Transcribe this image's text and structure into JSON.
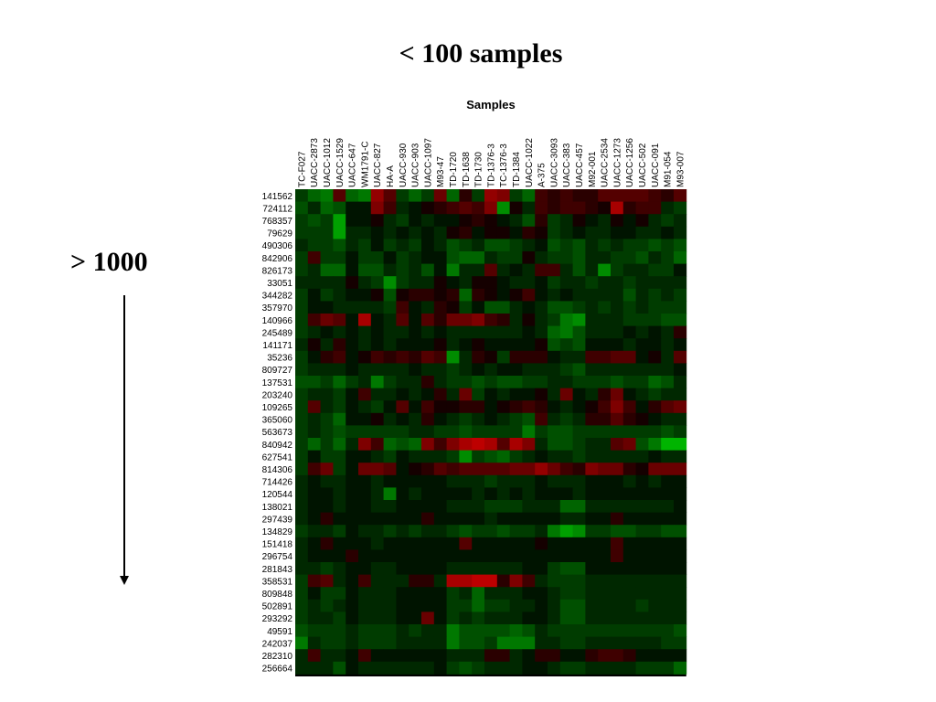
{
  "slide": {
    "title": "< 100  samples",
    "side_label": "> 1000",
    "arrow_icon": "down-arrow-icon"
  },
  "colors": {
    "low": "#00c800",
    "mid": "#000000",
    "high": "#d20000"
  },
  "chart_data": {
    "type": "heatmap",
    "title": "Samples",
    "color_scale": [
      "green",
      "black",
      "red"
    ],
    "columns": [
      "TC-F027",
      "UACC-2873",
      "UACC-1012",
      "UACC-1529",
      "UACC-647",
      "WM1791-C",
      "UACC-827",
      "HA-A",
      "UACC-930",
      "UACC-903",
      "UACC-1097",
      "M93-47",
      "TD-1720",
      "TD-1638",
      "TD-1730",
      "TD-1376-3",
      "TC-1376-3",
      "TD-1384",
      "UACC-1022",
      "A-375",
      "UACC-3093",
      "UACC-383",
      "UACC-457",
      "M92-001",
      "UACC-2534",
      "UACC-1273",
      "UACC-1256",
      "UACC-502",
      "UACC-091",
      "M91-054",
      "M93-007"
    ],
    "rows": [
      "141562",
      "724112",
      "768357",
      "79629",
      "490306",
      "842906",
      "826173",
      "33051",
      "344282",
      "357970",
      "140966",
      "245489",
      "141171",
      "35236",
      "809727",
      "137531",
      "203240",
      "109265",
      "365060",
      "563673",
      "840942",
      "627541",
      "814306",
      "714426",
      "120544",
      "138021",
      "297439",
      "134829",
      "151418",
      "296754",
      "281843",
      "358531",
      "809848",
      "502891",
      "293292",
      "49591",
      "242037",
      "282310",
      "256664"
    ],
    "values": [
      [
        -0.3,
        -0.5,
        -0.6,
        0.4,
        -0.5,
        -0.6,
        0.7,
        0.4,
        -0.3,
        -0.5,
        -0.3,
        0.5,
        -0.5,
        0.2,
        -0.3,
        0.7,
        0.6,
        -0.3,
        -0.5,
        0.3,
        0.2,
        0.3,
        0.2,
        0.2,
        0.4,
        0.4,
        0.4,
        0.4,
        0.3,
        0.2,
        0.4
      ],
      [
        -0.4,
        -0.2,
        -0.5,
        -0.4,
        -0.1,
        -0.1,
        0.6,
        0.3,
        -0.2,
        -0.1,
        0.1,
        0.2,
        0.3,
        0.4,
        0.3,
        0.6,
        -0.7,
        0.1,
        -0.2,
        0.3,
        0.2,
        0.3,
        0.3,
        0.2,
        0.1,
        0.8,
        0.2,
        0.3,
        0.3,
        -0.2,
        -0.3
      ],
      [
        -0.3,
        -0.4,
        -0.3,
        -0.8,
        -0.1,
        -0.1,
        0.1,
        -0.2,
        -0.3,
        -0.1,
        -0.2,
        -0.1,
        -0.1,
        0.1,
        0.2,
        0.1,
        -0.1,
        -0.2,
        -0.4,
        0.2,
        -0.3,
        -0.2,
        0.1,
        -0.1,
        -0.2,
        0.1,
        -0.1,
        0.1,
        -0.2,
        -0.3,
        -0.2
      ],
      [
        -0.3,
        -0.3,
        -0.3,
        -0.8,
        -0.2,
        -0.2,
        -0.1,
        -0.2,
        -0.1,
        -0.2,
        -0.1,
        -0.2,
        0.1,
        0.2,
        -0.1,
        0.1,
        0.1,
        -0.1,
        0.2,
        0.1,
        -0.3,
        -0.2,
        -0.1,
        -0.2,
        -0.2,
        -0.1,
        -0.1,
        -0.2,
        -0.2,
        -0.1,
        -0.2
      ],
      [
        -0.2,
        -0.3,
        -0.3,
        -0.4,
        -0.2,
        -0.3,
        -0.1,
        -0.3,
        -0.2,
        -0.3,
        -0.1,
        -0.2,
        -0.4,
        -0.3,
        -0.2,
        -0.4,
        -0.4,
        -0.3,
        -0.2,
        -0.1,
        -0.4,
        -0.3,
        -0.4,
        -0.2,
        -0.3,
        -0.2,
        -0.3,
        -0.3,
        -0.4,
        -0.3,
        -0.4
      ],
      [
        -0.3,
        0.3,
        -0.3,
        -0.3,
        -0.1,
        -0.3,
        -0.3,
        -0.1,
        -0.3,
        -0.2,
        -0.1,
        -0.1,
        -0.4,
        -0.5,
        -0.5,
        -0.2,
        -0.3,
        -0.3,
        0.1,
        -0.2,
        -0.3,
        -0.3,
        -0.4,
        -0.2,
        -0.2,
        -0.3,
        -0.3,
        -0.4,
        -0.2,
        -0.3,
        -0.5
      ],
      [
        -0.3,
        -0.2,
        -0.5,
        -0.5,
        -0.1,
        -0.4,
        -0.4,
        -0.2,
        -0.3,
        -0.2,
        -0.4,
        -0.1,
        -0.6,
        -0.2,
        -0.2,
        0.4,
        -0.2,
        -0.1,
        -0.2,
        0.3,
        0.3,
        -0.2,
        -0.4,
        -0.2,
        -0.7,
        -0.3,
        -0.2,
        -0.2,
        -0.3,
        -0.3,
        -0.1
      ],
      [
        -0.2,
        -0.2,
        -0.2,
        -0.2,
        0.1,
        -0.2,
        -0.3,
        -0.7,
        -0.3,
        -0.2,
        -0.2,
        0.1,
        -0.1,
        -0.2,
        0.1,
        0.1,
        -0.1,
        -0.2,
        -0.2,
        -0.1,
        -0.3,
        -0.2,
        -0.2,
        -0.3,
        -0.2,
        -0.2,
        -0.3,
        -0.2,
        -0.2,
        -0.2,
        -0.2
      ],
      [
        -0.3,
        -0.1,
        -0.3,
        -0.2,
        -0.1,
        -0.1,
        0.1,
        -0.4,
        0.1,
        0.2,
        0.2,
        0.1,
        0.2,
        -0.5,
        0.2,
        0.1,
        -0.1,
        0.1,
        0.3,
        -0.1,
        -0.2,
        -0.1,
        -0.2,
        -0.2,
        -0.2,
        -0.2,
        -0.4,
        -0.2,
        -0.3,
        -0.2,
        -0.3
      ],
      [
        -0.3,
        -0.1,
        -0.1,
        -0.2,
        -0.2,
        -0.2,
        -0.2,
        -0.3,
        0.3,
        -0.1,
        -0.2,
        0.2,
        0.1,
        -0.3,
        -0.1,
        -0.4,
        -0.4,
        -0.2,
        -0.1,
        -0.2,
        -0.4,
        -0.4,
        -0.3,
        -0.2,
        -0.3,
        -0.2,
        -0.3,
        -0.2,
        -0.3,
        -0.3,
        -0.3
      ],
      [
        -0.3,
        0.3,
        0.5,
        0.4,
        -0.1,
        0.8,
        -0.1,
        -0.2,
        0.4,
        -0.1,
        0.4,
        0.2,
        0.5,
        0.5,
        0.6,
        0.3,
        0.2,
        -0.2,
        0.1,
        -0.2,
        -0.3,
        -0.6,
        -0.7,
        -0.2,
        -0.2,
        -0.2,
        -0.3,
        -0.3,
        -0.3,
        -0.4,
        -0.4
      ],
      [
        -0.3,
        -0.2,
        -0.1,
        -0.2,
        -0.1,
        -0.2,
        -0.1,
        -0.2,
        -0.2,
        -0.1,
        -0.2,
        -0.1,
        -0.2,
        -0.2,
        -0.2,
        -0.2,
        -0.2,
        -0.2,
        -0.1,
        -0.2,
        -0.5,
        -0.6,
        -0.4,
        -0.2,
        -0.2,
        -0.2,
        -0.1,
        -0.2,
        -0.1,
        -0.2,
        0.2
      ],
      [
        -0.2,
        0.1,
        -0.2,
        0.2,
        -0.1,
        -0.2,
        -0.1,
        -0.2,
        -0.1,
        -0.1,
        -0.1,
        0.1,
        -0.2,
        -0.1,
        0.1,
        -0.1,
        -0.1,
        -0.1,
        -0.1,
        0.1,
        -0.4,
        -0.3,
        -0.4,
        -0.1,
        -0.1,
        -0.1,
        -0.2,
        -0.1,
        -0.1,
        -0.2,
        -0.1
      ],
      [
        -0.3,
        -0.1,
        0.2,
        0.3,
        -0.1,
        0.1,
        0.3,
        0.2,
        0.3,
        0.2,
        0.4,
        0.3,
        -0.7,
        -0.2,
        0.2,
        0.1,
        -0.3,
        0.2,
        0.2,
        0.2,
        -0.1,
        -0.2,
        -0.2,
        0.3,
        0.3,
        0.4,
        0.4,
        -0.1,
        0.1,
        -0.2,
        0.4
      ],
      [
        -0.3,
        -0.2,
        -0.2,
        -0.2,
        -0.1,
        -0.2,
        -0.2,
        -0.2,
        -0.2,
        -0.1,
        -0.2,
        -0.2,
        -0.3,
        -0.2,
        -0.1,
        -0.2,
        -0.1,
        -0.1,
        -0.2,
        -0.2,
        -0.2,
        -0.3,
        -0.4,
        -0.2,
        -0.2,
        -0.2,
        -0.2,
        -0.2,
        -0.2,
        -0.2,
        -0.1
      ],
      [
        -0.4,
        -0.4,
        -0.3,
        -0.5,
        -0.3,
        -0.2,
        -0.6,
        -0.3,
        -0.2,
        -0.2,
        0.2,
        -0.2,
        -0.3,
        -0.3,
        -0.4,
        -0.3,
        -0.4,
        -0.4,
        -0.3,
        -0.3,
        -0.2,
        -0.2,
        -0.3,
        -0.3,
        -0.3,
        -0.4,
        -0.3,
        -0.3,
        -0.5,
        -0.4,
        -0.2
      ],
      [
        -0.3,
        -0.2,
        -0.2,
        -0.3,
        -0.1,
        0.3,
        -0.2,
        -0.2,
        -0.1,
        -0.2,
        -0.1,
        0.2,
        -0.2,
        0.5,
        -0.3,
        -0.1,
        -0.2,
        -0.1,
        -0.1,
        0.1,
        -0.2,
        0.5,
        -0.1,
        -0.2,
        0.2,
        0.5,
        -0.1,
        -0.2,
        -0.3,
        -0.2,
        -0.2
      ],
      [
        -0.3,
        0.4,
        -0.2,
        -0.3,
        -0.1,
        -0.2,
        -0.3,
        -0.1,
        0.4,
        -0.1,
        0.3,
        0.1,
        0.1,
        0.2,
        0.2,
        -0.1,
        0.1,
        0.2,
        0.3,
        0.2,
        -0.1,
        -0.2,
        -0.1,
        0.1,
        0.3,
        0.6,
        0.3,
        -0.1,
        0.2,
        0.4,
        0.5
      ],
      [
        -0.3,
        -0.2,
        -0.3,
        -0.5,
        -0.1,
        -0.1,
        0.1,
        -0.2,
        -0.1,
        -0.2,
        0.2,
        -0.1,
        -0.2,
        -0.3,
        -0.2,
        -0.1,
        -0.2,
        -0.3,
        -0.4,
        0.3,
        -0.2,
        -0.3,
        -0.2,
        0.2,
        0.2,
        0.4,
        0.2,
        0.1,
        -0.1,
        -0.2,
        -0.2
      ],
      [
        -0.3,
        -0.2,
        -0.3,
        -0.4,
        -0.3,
        -0.3,
        -0.3,
        -0.3,
        -0.3,
        -0.2,
        -0.2,
        -0.3,
        -0.3,
        -0.4,
        -0.3,
        -0.3,
        -0.3,
        -0.3,
        -0.6,
        -0.3,
        -0.4,
        -0.4,
        -0.3,
        -0.3,
        -0.3,
        -0.3,
        -0.3,
        -0.3,
        -0.3,
        -0.4,
        -0.3
      ],
      [
        -0.3,
        -0.5,
        -0.3,
        -0.5,
        -0.2,
        0.6,
        0.3,
        -0.5,
        -0.4,
        -0.5,
        0.6,
        0.3,
        0.6,
        0.8,
        0.9,
        0.8,
        0.4,
        0.8,
        0.6,
        -0.2,
        -0.4,
        -0.4,
        -0.3,
        -0.2,
        -0.2,
        0.4,
        0.5,
        -0.4,
        -0.6,
        -0.9,
        -0.9
      ],
      [
        -0.3,
        -0.1,
        -0.3,
        -0.3,
        -0.1,
        -0.1,
        -0.2,
        -0.3,
        -0.1,
        -0.2,
        -0.2,
        -0.2,
        -0.3,
        -0.7,
        -0.3,
        -0.4,
        -0.5,
        -0.3,
        -0.2,
        -0.1,
        -0.2,
        -0.2,
        -0.3,
        -0.2,
        -0.2,
        -0.2,
        -0.2,
        -0.2,
        -0.1,
        -0.2,
        -0.2
      ],
      [
        -0.3,
        0.3,
        0.5,
        -0.3,
        -0.1,
        0.5,
        0.5,
        0.4,
        -0.1,
        0.1,
        0.2,
        0.4,
        0.3,
        0.4,
        0.4,
        0.4,
        0.4,
        0.5,
        0.5,
        0.7,
        0.5,
        0.3,
        0.2,
        0.6,
        0.5,
        0.5,
        0.2,
        0.1,
        0.5,
        0.5,
        0.5
      ],
      [
        -0.2,
        -0.1,
        -0.2,
        -0.2,
        -0.1,
        -0.1,
        -0.2,
        -0.1,
        -0.1,
        -0.1,
        -0.1,
        -0.1,
        -0.2,
        -0.2,
        -0.2,
        -0.3,
        -0.2,
        -0.2,
        -0.2,
        -0.1,
        -0.2,
        -0.2,
        -0.2,
        -0.1,
        -0.1,
        -0.1,
        -0.2,
        -0.1,
        -0.2,
        -0.1,
        -0.1
      ],
      [
        -0.2,
        -0.1,
        -0.1,
        -0.2,
        -0.1,
        -0.1,
        -0.2,
        -0.6,
        -0.1,
        -0.2,
        -0.1,
        -0.1,
        -0.1,
        -0.1,
        -0.2,
        -0.1,
        -0.2,
        -0.1,
        -0.2,
        -0.1,
        -0.1,
        -0.1,
        -0.2,
        -0.1,
        -0.1,
        -0.1,
        -0.1,
        -0.1,
        -0.1,
        -0.1,
        -0.1
      ],
      [
        -0.2,
        -0.1,
        -0.1,
        -0.2,
        -0.1,
        -0.1,
        -0.2,
        -0.2,
        -0.1,
        -0.1,
        -0.1,
        -0.1,
        -0.2,
        -0.2,
        -0.2,
        -0.3,
        -0.3,
        -0.3,
        -0.2,
        -0.2,
        -0.2,
        -0.5,
        -0.5,
        -0.2,
        -0.2,
        -0.2,
        -0.2,
        -0.2,
        -0.2,
        -0.2,
        -0.1
      ],
      [
        -0.2,
        -0.1,
        0.2,
        -0.1,
        -0.1,
        -0.1,
        -0.1,
        -0.1,
        -0.1,
        -0.1,
        0.2,
        -0.1,
        -0.1,
        -0.1,
        -0.1,
        -0.2,
        -0.1,
        -0.1,
        -0.1,
        -0.1,
        -0.1,
        -0.2,
        -0.2,
        -0.1,
        -0.1,
        0.2,
        -0.1,
        -0.1,
        -0.1,
        -0.1,
        -0.1
      ],
      [
        -0.3,
        -0.2,
        -0.2,
        -0.3,
        -0.1,
        -0.2,
        -0.2,
        -0.3,
        -0.2,
        -0.3,
        -0.2,
        -0.2,
        -0.3,
        -0.4,
        -0.3,
        -0.3,
        -0.4,
        -0.3,
        -0.3,
        -0.2,
        -0.6,
        -0.8,
        -0.7,
        -0.3,
        -0.3,
        -0.4,
        -0.4,
        -0.3,
        -0.3,
        -0.4,
        -0.4
      ],
      [
        -0.2,
        -0.1,
        0.2,
        -0.1,
        -0.1,
        -0.1,
        -0.2,
        -0.1,
        -0.1,
        -0.1,
        -0.1,
        -0.1,
        -0.1,
        0.4,
        -0.1,
        -0.1,
        -0.1,
        -0.1,
        -0.1,
        0.1,
        -0.1,
        -0.1,
        -0.1,
        -0.1,
        -0.1,
        0.3,
        -0.1,
        -0.1,
        -0.1,
        -0.1,
        -0.1
      ],
      [
        -0.2,
        -0.1,
        -0.1,
        -0.1,
        0.2,
        -0.1,
        -0.1,
        -0.1,
        -0.1,
        -0.1,
        -0.1,
        -0.1,
        -0.1,
        -0.1,
        -0.1,
        -0.1,
        -0.1,
        -0.1,
        -0.1,
        -0.1,
        -0.1,
        -0.1,
        -0.1,
        -0.1,
        -0.1,
        0.3,
        -0.1,
        -0.1,
        -0.1,
        -0.1,
        -0.1
      ],
      [
        -0.2,
        -0.2,
        -0.3,
        -0.2,
        -0.1,
        -0.1,
        -0.2,
        -0.2,
        -0.1,
        -0.1,
        -0.1,
        -0.1,
        -0.2,
        -0.2,
        -0.2,
        -0.2,
        -0.2,
        -0.2,
        -0.1,
        -0.1,
        -0.3,
        -0.4,
        -0.4,
        -0.1,
        -0.1,
        -0.1,
        -0.1,
        -0.1,
        -0.1,
        -0.1,
        -0.1
      ],
      [
        -0.3,
        0.3,
        0.4,
        -0.2,
        -0.1,
        0.3,
        -0.2,
        -0.2,
        -0.2,
        0.2,
        0.2,
        -0.2,
        0.8,
        0.8,
        0.9,
        0.9,
        0.2,
        0.6,
        0.3,
        -0.2,
        -0.3,
        -0.3,
        -0.3,
        -0.2,
        -0.2,
        -0.2,
        -0.2,
        -0.2,
        -0.2,
        -0.2,
        -0.2
      ],
      [
        -0.3,
        -0.1,
        -0.3,
        -0.3,
        -0.1,
        -0.2,
        -0.2,
        -0.2,
        -0.1,
        -0.1,
        -0.1,
        -0.1,
        -0.3,
        -0.2,
        -0.5,
        -0.2,
        -0.2,
        -0.2,
        -0.1,
        -0.1,
        -0.2,
        -0.3,
        -0.3,
        -0.2,
        -0.2,
        -0.2,
        -0.2,
        -0.2,
        -0.2,
        -0.2,
        -0.2
      ],
      [
        -0.3,
        -0.2,
        -0.3,
        -0.2,
        -0.1,
        -0.2,
        -0.2,
        -0.2,
        -0.1,
        -0.1,
        -0.1,
        -0.1,
        -0.3,
        -0.3,
        -0.5,
        -0.3,
        -0.3,
        -0.2,
        -0.2,
        -0.1,
        -0.2,
        -0.4,
        -0.4,
        -0.2,
        -0.2,
        -0.2,
        -0.2,
        -0.3,
        -0.2,
        -0.2,
        -0.2
      ],
      [
        -0.3,
        -0.2,
        -0.2,
        -0.3,
        -0.1,
        -0.2,
        -0.2,
        -0.2,
        -0.1,
        -0.1,
        0.5,
        -0.1,
        -0.3,
        -0.2,
        -0.3,
        -0.2,
        -0.2,
        -0.2,
        -0.1,
        -0.1,
        -0.2,
        -0.4,
        -0.4,
        -0.2,
        -0.2,
        -0.2,
        -0.2,
        -0.2,
        -0.2,
        -0.2,
        -0.2
      ],
      [
        -0.4,
        -0.3,
        -0.3,
        -0.3,
        -0.2,
        -0.3,
        -0.3,
        -0.3,
        -0.2,
        -0.3,
        -0.2,
        -0.2,
        -0.6,
        -0.4,
        -0.4,
        -0.4,
        -0.4,
        -0.5,
        -0.4,
        -0.2,
        -0.3,
        -0.3,
        -0.3,
        -0.3,
        -0.3,
        -0.3,
        -0.3,
        -0.3,
        -0.3,
        -0.3,
        -0.4
      ],
      [
        -0.6,
        -0.2,
        -0.3,
        -0.3,
        -0.2,
        -0.3,
        -0.3,
        -0.3,
        -0.2,
        -0.2,
        -0.2,
        -0.2,
        -0.6,
        -0.4,
        -0.4,
        -0.3,
        -0.6,
        -0.6,
        -0.6,
        -0.2,
        -0.2,
        -0.3,
        -0.3,
        -0.2,
        -0.2,
        -0.2,
        -0.2,
        -0.2,
        -0.2,
        -0.3,
        -0.3
      ],
      [
        -0.2,
        0.3,
        -0.2,
        -0.2,
        -0.1,
        0.3,
        -0.1,
        -0.1,
        -0.1,
        -0.1,
        -0.1,
        -0.1,
        -0.2,
        -0.2,
        -0.2,
        0.2,
        0.2,
        -0.2,
        -0.1,
        0.2,
        0.2,
        -0.1,
        -0.1,
        0.2,
        0.3,
        0.3,
        0.2,
        -0.1,
        -0.1,
        -0.1,
        -0.1
      ],
      [
        -0.2,
        -0.2,
        -0.2,
        -0.4,
        -0.1,
        -0.2,
        -0.2,
        -0.2,
        -0.2,
        -0.2,
        -0.2,
        -0.1,
        -0.3,
        -0.4,
        -0.3,
        -0.2,
        -0.2,
        -0.2,
        -0.1,
        -0.1,
        -0.2,
        -0.3,
        -0.3,
        -0.2,
        -0.2,
        -0.2,
        -0.2,
        -0.3,
        -0.3,
        -0.3,
        -0.5
      ]
    ]
  }
}
